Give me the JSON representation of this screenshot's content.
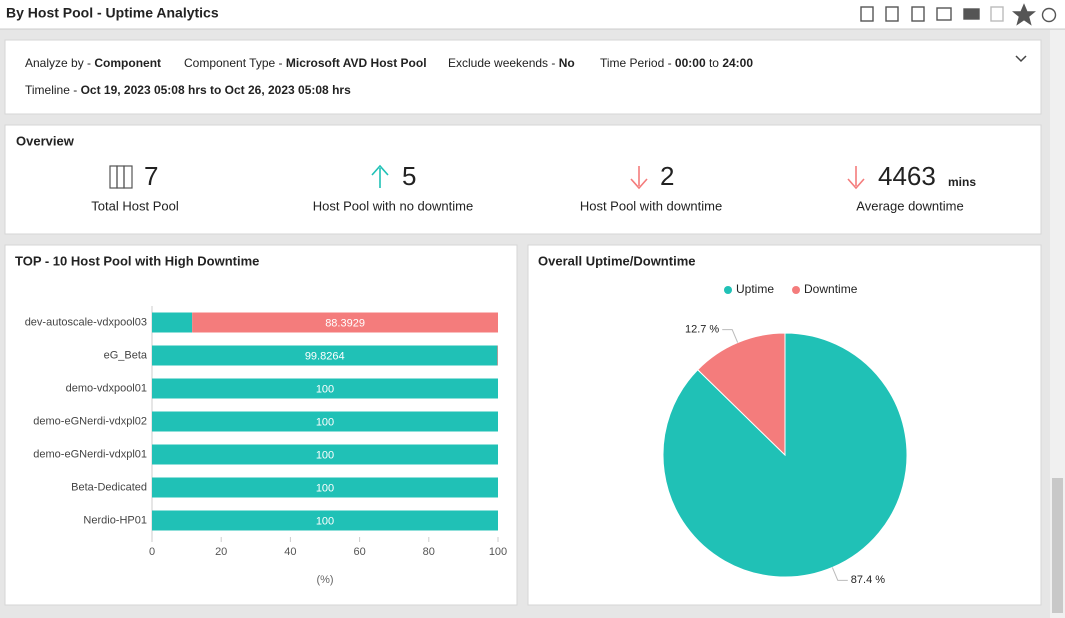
{
  "header": {
    "title": "By Host Pool - Uptime Analytics"
  },
  "filters": {
    "analyze_by": {
      "label": "Analyze by -",
      "value": "Component"
    },
    "component_type": {
      "label": "Component Type -",
      "value": "Microsoft AVD Host Pool"
    },
    "exclude_weekends": {
      "label": "Exclude weekends -",
      "value": "No"
    },
    "time_period": {
      "label": "Time Period -",
      "from": "00:00",
      "joiner": "to",
      "to": "24:00"
    },
    "timeline": {
      "label": "Timeline -",
      "value": "Oct 19, 2023 05:08 hrs to Oct 26, 2023 05:08 hrs"
    }
  },
  "overview": {
    "title": "Overview",
    "items": [
      {
        "value": "7",
        "label": "Total Host Pool"
      },
      {
        "value": "5",
        "label": "Host Pool with no downtime"
      },
      {
        "value": "2",
        "label": "Host Pool with downtime"
      },
      {
        "value": "4463",
        "unit": "mins",
        "label": "Average downtime"
      }
    ]
  },
  "chart_data": [
    {
      "type": "stacked-bar-horizontal",
      "title": "TOP - 10 Host Pool with High Downtime",
      "categories": [
        "dev-autoscale-vdxpool03",
        "eG_Beta",
        "demo-vdxpool01",
        "demo-eGNerdi-vdxpl02",
        "demo-eGNerdi-vdxpl01",
        "Beta-Dedicated",
        "Nerdio-HP01"
      ],
      "series": [
        {
          "name": "Uptime",
          "color": "#20c1b6",
          "values": [
            11.6071,
            99.8264,
            100,
            100,
            100,
            100,
            100
          ]
        },
        {
          "name": "Downtime",
          "color": "#f47c7c",
          "values": [
            88.3929,
            0.1736,
            0,
            0,
            0,
            0,
            0
          ]
        }
      ],
      "xlim": [
        0,
        100
      ],
      "xticks": [
        0,
        20,
        40,
        60,
        80,
        100
      ],
      "xlabel": "(%)"
    },
    {
      "type": "pie",
      "title": "Overall Uptime/Downtime",
      "categories": [
        "Uptime",
        "Downtime"
      ],
      "values": [
        87.4,
        12.7
      ],
      "value_labels": [
        "87.4 %",
        "12.7 %"
      ],
      "colors": [
        "#20c1b6",
        "#f47c7c"
      ],
      "legend": "top"
    }
  ]
}
